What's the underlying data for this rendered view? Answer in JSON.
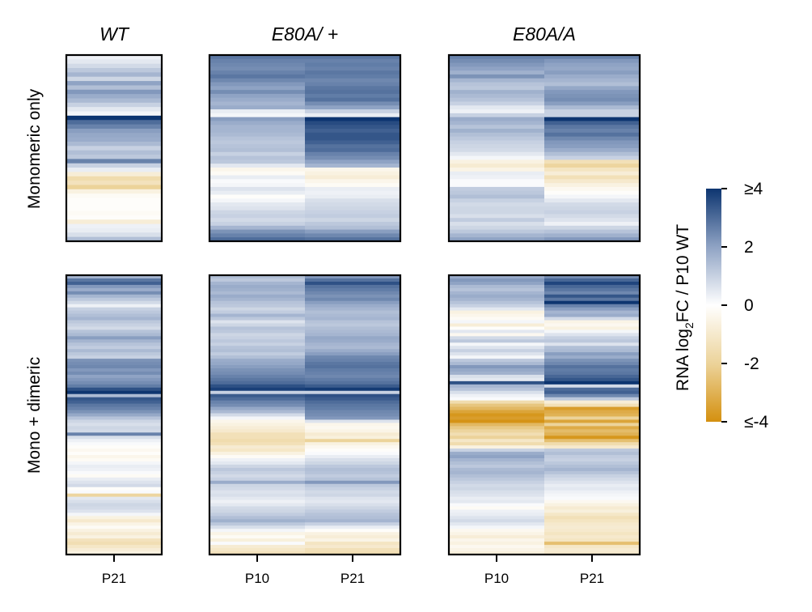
{
  "chart_data": {
    "type": "heatmap",
    "colorbar": {
      "title_prefix": "RNA log",
      "title_sub": "2",
      "title_suffix": "FC / P10 WT",
      "vmin": -4,
      "vmax": 4,
      "ticks": [
        {
          "value": 4,
          "label": "≥4"
        },
        {
          "value": 2,
          "label": "2"
        },
        {
          "value": 0,
          "label": "0"
        },
        {
          "value": -2,
          "label": "-2"
        },
        {
          "value": -4,
          "label": "≤-4"
        }
      ],
      "colors": {
        "low": "#d4900f",
        "mid": "#ffffff",
        "high": "#0d3570"
      }
    },
    "columns": [
      {
        "title": "WT",
        "xticks": [
          "P21"
        ]
      },
      {
        "title": "E80A/ +",
        "xticks": [
          "P10",
          "P21"
        ]
      },
      {
        "title": "E80A/A",
        "xticks": [
          "P10",
          "P21"
        ]
      }
    ],
    "rows": [
      {
        "label": "Monomeric only"
      },
      {
        "label": "Mono + dimeric"
      }
    ],
    "panels": [
      {
        "row": 0,
        "col": 0,
        "series": [
          [
            0.3,
            0.5,
            0.8,
            1.2,
            1.6,
            0.9,
            2.0,
            1.4,
            2.2,
            1.8,
            1.5,
            1.0,
            0.5,
            0.2,
            4.0,
            3.0,
            2.6,
            2.1,
            1.9,
            1.8,
            1.5,
            1.0,
            1.4,
            1.2,
            2.6,
            1.0,
            0.4,
            -0.8,
            -1.6,
            -1.3,
            -2.0,
            -0.6,
            -0.2,
            -0.1,
            -0.1,
            -0.1,
            -0.2,
            -0.1,
            -0.8,
            0.3,
            0.4,
            0.7,
            1.4
          ]
        ]
      },
      {
        "row": 0,
        "col": 1,
        "series": [
          [
            2.8,
            2.6,
            2.5,
            2.4,
            2.6,
            2.8,
            2.5,
            2.2,
            2.0,
            2.4,
            2.0,
            1.8,
            1.6,
            1.8,
            0.4,
            0.2,
            2.1,
            1.8,
            1.6,
            1.6,
            1.5,
            1.3,
            1.2,
            1.3,
            1.4,
            1.0,
            1.3,
            1.2,
            0.5,
            -0.4,
            -0.2,
            0.4,
            0.1,
            0.2,
            0.6,
            0.4,
            -0.1,
            0.2,
            0.5,
            0.6,
            0.9,
            1.0,
            0.8,
            1.0,
            1.6,
            2.3,
            2.6,
            3.0
          ],
          [
            2.8,
            2.6,
            2.7,
            2.6,
            2.8,
            2.7,
            2.5,
            2.6,
            2.8,
            2.9,
            2.7,
            2.9,
            2.4,
            2.0,
            1.0,
            0.4,
            4.0,
            3.6,
            3.4,
            3.2,
            3.4,
            3.4,
            3.2,
            2.9,
            3.0,
            2.6,
            2.4,
            2.0,
            1.6,
            -0.4,
            -0.6,
            -0.8,
            -0.4,
            -0.2,
            0.4,
            0.3,
            0.4,
            0.7,
            0.8,
            0.9,
            1.0,
            1.1,
            0.9,
            1.2,
            1.4,
            2.1,
            2.5,
            2.9
          ]
        ]
      },
      {
        "row": 0,
        "col": 2,
        "series": [
          [
            2.6,
            2.4,
            2.2,
            2.0,
            1.7,
            2.3,
            1.6,
            1.3,
            1.2,
            1.7,
            1.5,
            1.3,
            1.0,
            0.5,
            0.3,
            1.0,
            1.8,
            1.6,
            1.3,
            1.7,
            1.4,
            1.2,
            1.0,
            0.9,
            0.8,
            0.5,
            0.2,
            -0.6,
            -0.9,
            -0.5,
            0.4,
            0.3,
            0.1,
            0.1,
            1.1,
            1.2,
            1.4,
            1.0,
            0.8,
            0.9,
            0.9,
            0.7,
            1.1,
            0.7,
            0.9,
            1.2,
            1.6,
            2.0
          ],
          [
            2.6,
            2.2,
            2.0,
            1.9,
            2.1,
            1.8,
            1.6,
            1.4,
            1.9,
            2.2,
            2.3,
            2.4,
            2.1,
            1.5,
            1.0,
            1.0,
            4.0,
            3.2,
            2.8,
            2.6,
            2.9,
            2.5,
            2.2,
            2.1,
            1.8,
            1.4,
            1.0,
            -1.4,
            -1.9,
            -1.2,
            -0.8,
            -1.4,
            -1.0,
            -0.6,
            -0.3,
            -0.1,
            0.2,
            0.5,
            0.8,
            0.9,
            1.0,
            0.8,
            0.6,
            0.3,
            0.9,
            1.3,
            1.7,
            2.2
          ]
        ]
      },
      {
        "row": 1,
        "col": 0,
        "series": [
          [
            1.6,
            2.8,
            3.2,
            2.2,
            1.8,
            2.4,
            1.6,
            1.2,
            0.8,
            0.3,
            1.0,
            1.2,
            1.4,
            1.6,
            1.2,
            1.0,
            0.8,
            1.3,
            1.5,
            2.1,
            1.6,
            1.3,
            1.1,
            1.5,
            1.2,
            1.0,
            2.3,
            2.4,
            2.5,
            2.2,
            2.4,
            2.0,
            2.2,
            2.4,
            2.7,
            3.5,
            4.0,
            1.5,
            3.4,
            3.2,
            2.8,
            2.6,
            2.3,
            1.9,
            1.3,
            0.9,
            0.7,
            0.9,
            0.8,
            2.6,
            0.7,
            0.3,
            0.1,
            -0.1,
            -0.3,
            -0.1,
            -0.4,
            -0.2,
            0.2,
            0.4,
            0.3,
            0.1,
            -0.2,
            0.4,
            0.6,
            0.8,
            -0.1,
            0.1,
            -1.9,
            0.5,
            0.7,
            0.9,
            0.8,
            0.6,
            0.2,
            -0.6,
            -1.0,
            -0.5,
            -0.2,
            -0.6,
            -0.9,
            -0.6,
            -1.3,
            -1.5,
            -1.1,
            -0.8,
            -0.6
          ]
        ]
      },
      {
        "row": 1,
        "col": 1,
        "series": [
          [
            1.4,
            1.2,
            1.6,
            1.8,
            1.7,
            1.5,
            1.8,
            1.6,
            1.3,
            1.2,
            0.9,
            1.1,
            1.6,
            1.2,
            0.6,
            0.9,
            1.3,
            1.2,
            0.9,
            1.0,
            1.2,
            1.0,
            1.3,
            1.4,
            1.1,
            1.4,
            1.8,
            1.9,
            2.1,
            2.3,
            2.4,
            2.6,
            2.8,
            3.0,
            3.5,
            3.8,
            1.0,
            3.3,
            3.0,
            2.6,
            2.4,
            1.9,
            1.5,
            0.8,
            0.2,
            -0.4,
            -0.6,
            -0.8,
            -1.0,
            -1.4,
            -1.4,
            -1.6,
            -1.4,
            -0.9,
            -1.1,
            -0.6,
            -0.2,
            0.3,
            0.5,
            0.9,
            1.2,
            1.0,
            0.8,
            1.0,
            1.8,
            0.9,
            0.8,
            0.6,
            0.7,
            0.5,
            0.3,
            0.5,
            0.8,
            0.9,
            1.1,
            1.4,
            1.7,
            1.2,
            0.7,
            0.2,
            -0.5,
            -0.2,
            -0.7,
            0.1,
            -0.9,
            -1.1,
            -1.3
          ],
          [
            2.2,
            2.9,
            3.5,
            2.9,
            2.7,
            2.5,
            2.3,
            2.5,
            2.1,
            1.8,
            1.6,
            1.4,
            1.5,
            1.6,
            1.3,
            1.2,
            1.4,
            1.5,
            1.6,
            1.9,
            1.8,
            1.6,
            1.5,
            1.8,
            2.1,
            2.5,
            2.6,
            2.8,
            2.9,
            2.7,
            2.6,
            2.5,
            2.7,
            2.9,
            3.3,
            3.9,
            1.0,
            3.5,
            3.3,
            3.0,
            2.8,
            2.7,
            2.5,
            2.4,
            2.2,
            0.6,
            -0.4,
            -0.3,
            -0.5,
            -0.9,
            -0.7,
            -2.0,
            -0.6,
            -0.3,
            -0.1,
            0.1,
            0.4,
            0.7,
            0.9,
            1.2,
            1.4,
            1.3,
            1.1,
            1.3,
            2.2,
            1.2,
            1.0,
            0.8,
            0.9,
            0.6,
            0.5,
            0.7,
            0.9,
            1.1,
            1.3,
            1.4,
            1.6,
            1.0,
            0.4,
            -0.1,
            -0.6,
            -0.8,
            -0.5,
            -1.2,
            -1.0,
            -1.4,
            -1.5
          ]
        ]
      },
      {
        "row": 1,
        "col": 2,
        "series": [
          [
            1.8,
            2.2,
            2.0,
            1.5,
            1.3,
            1.6,
            1.8,
            1.6,
            1.3,
            1.0,
            0.5,
            -0.6,
            -0.4,
            -0.2,
            0.2,
            -0.8,
            -0.1,
            0.5,
            -0.3,
            0.8,
            1.2,
            0.2,
            0.6,
            1.0,
            0.6,
            0.2,
            1.2,
            1.5,
            2.2,
            1.9,
            1.7,
            0.7,
            0.5,
            3.5,
            1.6,
            1.3,
            0.7,
            0.3,
            0.1,
            -1.6,
            -2.4,
            -2.8,
            -3.4,
            -3.8,
            -3.6,
            -3.9,
            -2.8,
            -2.3,
            -1.9,
            -1.5,
            -2.0,
            -1.1,
            -1.6,
            -0.6,
            1.0,
            1.8,
            2.0,
            1.6,
            1.4,
            1.2,
            1.5,
            1.6,
            1.4,
            1.2,
            1.0,
            0.8,
            0.9,
            0.7,
            0.6,
            0.4,
            0.5,
            0.1,
            -0.2,
            0.3,
            0.4,
            0.6,
            0.8,
            0.5,
            0.2,
            -0.3,
            -0.5,
            -0.8,
            -0.4,
            -0.6,
            -0.3,
            -0.5,
            -0.7
          ],
          [
            2.4,
            3.1,
            3.7,
            3.1,
            2.8,
            2.5,
            3.4,
            2.8,
            4.0,
            2.6,
            2.1,
            1.6,
            1.8,
            0.8,
            -0.5,
            -0.3,
            -0.6,
            0.2,
            0.6,
            1.0,
            1.2,
            0.6,
            1.4,
            1.5,
            2.1,
            1.8,
            2.3,
            2.5,
            2.9,
            2.7,
            2.8,
            3.1,
            3.4,
            4.0,
            0.8,
            3.0,
            3.2,
            2.5,
            1.2,
            -0.8,
            -1.4,
            -3.6,
            -3.2,
            -3.0,
            -2.0,
            -3.4,
            -2.0,
            -3.2,
            -2.7,
            -3.0,
            -3.8,
            -2.6,
            -1.6,
            -1.0,
            1.2,
            1.4,
            1.1,
            1.0,
            1.2,
            1.4,
            1.6,
            1.3,
            1.0,
            0.8,
            0.6,
            0.4,
            0.5,
            0.3,
            0.2,
            0.1,
            -0.3,
            -0.6,
            -0.9,
            -0.7,
            -1.1,
            -1.4,
            -1.2,
            -1.0,
            -0.9,
            -1.0,
            -1.2,
            -1.0,
            -1.2,
            -2.6,
            -1.1,
            -0.9,
            -1.0
          ]
        ]
      }
    ]
  }
}
